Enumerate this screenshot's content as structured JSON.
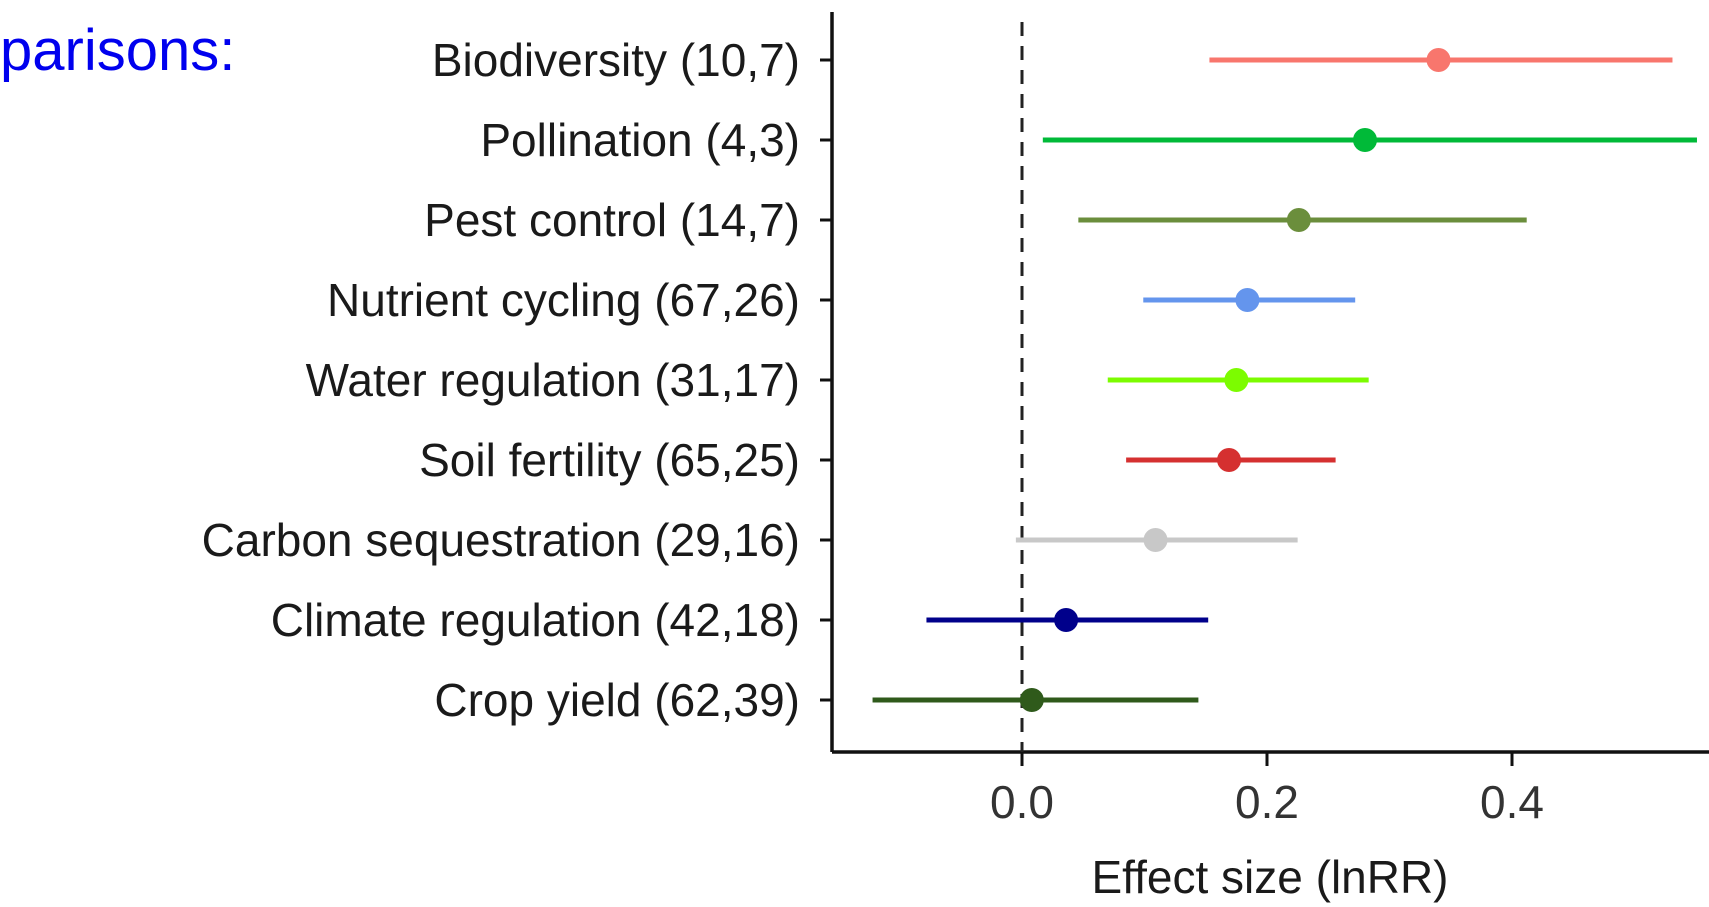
{
  "overlay_text": "parisons:",
  "chart_data": {
    "type": "forest",
    "title": "",
    "xlabel": "Effect size (lnRR)",
    "ylabel": "",
    "xlim": [
      -0.16,
      0.56
    ],
    "xticks": [
      0.0,
      0.2,
      0.4
    ],
    "xtick_labels": [
      "0.0",
      "0.2",
      "0.4"
    ],
    "reference_line": 0.0,
    "grid": false,
    "legend": "none",
    "categories": [
      {
        "label": "Biodiversity (10,7)",
        "estimate": 0.34,
        "lower": 0.153,
        "upper": 0.531,
        "color": "#f8766d"
      },
      {
        "label": "Pollination (4,3)",
        "estimate": 0.28,
        "lower": 0.017,
        "upper": 0.551,
        "color": "#00ba38"
      },
      {
        "label": "Pest control (14,7)",
        "estimate": 0.226,
        "lower": 0.046,
        "upper": 0.412,
        "color": "#6b8e3c"
      },
      {
        "label": "Nutrient cycling (67,26)",
        "estimate": 0.184,
        "lower": 0.099,
        "upper": 0.272,
        "color": "#6495ed"
      },
      {
        "label": "Water regulation (31,17)",
        "estimate": 0.175,
        "lower": 0.07,
        "upper": 0.283,
        "color": "#7cfc00"
      },
      {
        "label": "Soil fertility (65,25)",
        "estimate": 0.169,
        "lower": 0.085,
        "upper": 0.256,
        "color": "#d53030"
      },
      {
        "label": "Carbon sequestration (29,16)",
        "estimate": 0.109,
        "lower": -0.005,
        "upper": 0.225,
        "color": "#c8c8c8"
      },
      {
        "label": "Climate regulation (42,18)",
        "estimate": 0.036,
        "lower": -0.078,
        "upper": 0.152,
        "color": "#00008b"
      },
      {
        "label": "Crop yield (62,39)",
        "estimate": 0.008,
        "lower": -0.122,
        "upper": 0.144,
        "color": "#2f5a1b"
      }
    ]
  }
}
